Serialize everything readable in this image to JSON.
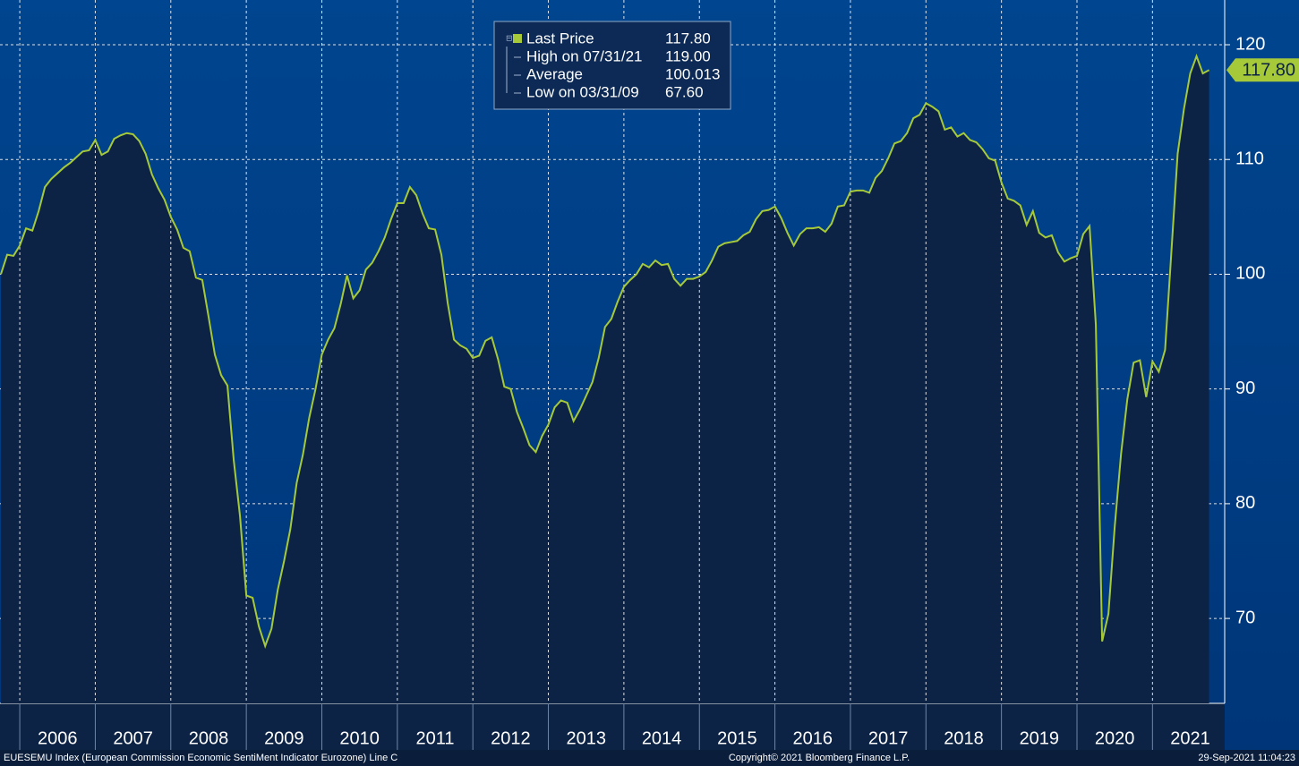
{
  "chart_data": {
    "type": "line",
    "x": [
      "2005-09",
      "2005-10",
      "2005-11",
      "2005-12",
      "2006-01",
      "2006-02",
      "2006-03",
      "2006-04",
      "2006-05",
      "2006-06",
      "2006-07",
      "2006-08",
      "2006-09",
      "2006-10",
      "2006-11",
      "2006-12",
      "2007-01",
      "2007-02",
      "2007-03",
      "2007-04",
      "2007-05",
      "2007-06",
      "2007-07",
      "2007-08",
      "2007-09",
      "2007-10",
      "2007-11",
      "2007-12",
      "2008-01",
      "2008-02",
      "2008-03",
      "2008-04",
      "2008-05",
      "2008-06",
      "2008-07",
      "2008-08",
      "2008-09",
      "2008-10",
      "2008-11",
      "2008-12",
      "2009-01",
      "2009-02",
      "2009-03",
      "2009-04",
      "2009-05",
      "2009-06",
      "2009-07",
      "2009-08",
      "2009-09",
      "2009-10",
      "2009-11",
      "2009-12",
      "2010-01",
      "2010-02",
      "2010-03",
      "2010-04",
      "2010-05",
      "2010-06",
      "2010-07",
      "2010-08",
      "2010-09",
      "2010-10",
      "2010-11",
      "2010-12",
      "2011-01",
      "2011-02",
      "2011-03",
      "2011-04",
      "2011-05",
      "2011-06",
      "2011-07",
      "2011-08",
      "2011-09",
      "2011-10",
      "2011-11",
      "2011-12",
      "2012-01",
      "2012-02",
      "2012-03",
      "2012-04",
      "2012-05",
      "2012-06",
      "2012-07",
      "2012-08",
      "2012-09",
      "2012-10",
      "2012-11",
      "2012-12",
      "2013-01",
      "2013-02",
      "2013-03",
      "2013-04",
      "2013-05",
      "2013-06",
      "2013-07",
      "2013-08",
      "2013-09",
      "2013-10",
      "2013-11",
      "2013-12",
      "2014-01",
      "2014-02",
      "2014-03",
      "2014-04",
      "2014-05",
      "2014-06",
      "2014-07",
      "2014-08",
      "2014-09",
      "2014-10",
      "2014-11",
      "2014-12",
      "2015-01",
      "2015-02",
      "2015-03",
      "2015-04",
      "2015-05",
      "2015-06",
      "2015-07",
      "2015-08",
      "2015-09",
      "2015-10",
      "2015-11",
      "2015-12",
      "2016-01",
      "2016-02",
      "2016-03",
      "2016-04",
      "2016-05",
      "2016-06",
      "2016-07",
      "2016-08",
      "2016-09",
      "2016-10",
      "2016-11",
      "2016-12",
      "2017-01",
      "2017-02",
      "2017-03",
      "2017-04",
      "2017-05",
      "2017-06",
      "2017-07",
      "2017-08",
      "2017-09",
      "2017-10",
      "2017-11",
      "2017-12",
      "2018-01",
      "2018-02",
      "2018-03",
      "2018-04",
      "2018-05",
      "2018-06",
      "2018-07",
      "2018-08",
      "2018-09",
      "2018-10",
      "2018-11",
      "2018-12",
      "2019-01",
      "2019-02",
      "2019-03",
      "2019-04",
      "2019-05",
      "2019-06",
      "2019-07",
      "2019-08",
      "2019-09",
      "2019-10",
      "2019-11",
      "2019-12",
      "2020-01",
      "2020-02",
      "2020-03",
      "2020-04",
      "2020-05",
      "2020-06",
      "2020-07",
      "2020-08",
      "2020-09",
      "2020-10",
      "2020-11",
      "2020-12",
      "2021-01",
      "2021-02",
      "2021-03",
      "2021-04",
      "2021-05",
      "2021-06",
      "2021-07",
      "2021-08",
      "2021-09"
    ],
    "series": [
      {
        "name": "Last Price",
        "color": "#a6c93a",
        "values": [
          100.0,
          101.7,
          101.6,
          102.5,
          104.0,
          103.8,
          105.5,
          107.6,
          108.3,
          108.8,
          109.3,
          109.7,
          110.2,
          110.7,
          110.8,
          111.7,
          110.4,
          110.7,
          111.8,
          112.1,
          112.3,
          112.2,
          111.6,
          110.5,
          108.7,
          107.5,
          106.5,
          105.0,
          103.9,
          102.3,
          102.0,
          99.7,
          99.5,
          96.3,
          93.0,
          91.2,
          90.3,
          83.8,
          78.9,
          72.0,
          71.8,
          69.3,
          67.6,
          69.1,
          72.5,
          75.0,
          77.8,
          81.8,
          84.3,
          87.5,
          90.0,
          93.0,
          94.3,
          95.3,
          97.4,
          99.9,
          97.9,
          98.6,
          100.4,
          101.0,
          102.0,
          103.2,
          104.8,
          106.2,
          106.2,
          107.6,
          106.9,
          105.3,
          104.0,
          103.9,
          101.7,
          97.5,
          94.3,
          93.8,
          93.5,
          92.7,
          92.9,
          94.2,
          94.5,
          92.6,
          90.2,
          90.0,
          88.0,
          86.6,
          85.1,
          84.5,
          85.9,
          86.9,
          88.4,
          89.0,
          88.8,
          87.2,
          88.2,
          89.4,
          90.6,
          92.7,
          95.4,
          96.1,
          97.6,
          98.9,
          99.5,
          100.0,
          100.9,
          100.6,
          101.2,
          100.8,
          100.9,
          99.6,
          99.0,
          99.6,
          99.6,
          99.8,
          100.2,
          101.2,
          102.4,
          102.7,
          102.8,
          102.9,
          103.4,
          103.7,
          104.8,
          105.5,
          105.6,
          105.9,
          104.9,
          103.6,
          102.5,
          103.5,
          104.0,
          104.0,
          104.1,
          103.7,
          104.4,
          105.9,
          106.0,
          107.2,
          107.3,
          107.3,
          107.1,
          108.4,
          109.0,
          110.1,
          111.4,
          111.6,
          112.3,
          113.6,
          113.9,
          114.9,
          114.6,
          114.2,
          112.6,
          112.8,
          112.0,
          112.3,
          111.7,
          111.5,
          110.9,
          110.1,
          109.9,
          108.0,
          106.6,
          106.4,
          106.0,
          104.3,
          105.5,
          103.6,
          103.2,
          103.4,
          101.9,
          101.1,
          101.4,
          101.6,
          103.5,
          104.2,
          95.6,
          68.0,
          70.4,
          78.0,
          84.3,
          89.1,
          92.3,
          92.5,
          89.3,
          92.4,
          91.5,
          93.4,
          101.9,
          110.5,
          114.4,
          117.5,
          119.0,
          117.5,
          117.8
        ]
      }
    ],
    "last_label": "117.80",
    "ylim": [
      62.6,
      123.9
    ],
    "yticks": [
      70,
      80,
      90,
      100,
      110,
      120
    ],
    "xticks": [
      "2006",
      "2007",
      "2008",
      "2009",
      "2010",
      "2011",
      "2012",
      "2013",
      "2014",
      "2015",
      "2016",
      "2017",
      "2018",
      "2019",
      "2020",
      "2021"
    ],
    "grid": true,
    "legend": [
      {
        "label": "Last Price",
        "value": "117.80"
      },
      {
        "label": "High on 07/31/21",
        "value": "119.00"
      },
      {
        "label": "Average",
        "value": "100.013"
      },
      {
        "label": "Low on 03/31/09",
        "value": "67.60"
      }
    ],
    "footer_left": "EUESEMU Index (European Commission Economic SentiMent Indicator Eurozone) Line C",
    "footer_center": "Copyright© 2021 Bloomberg Finance L.P.",
    "footer_right": "29-Sep-2021 11:04:23"
  }
}
